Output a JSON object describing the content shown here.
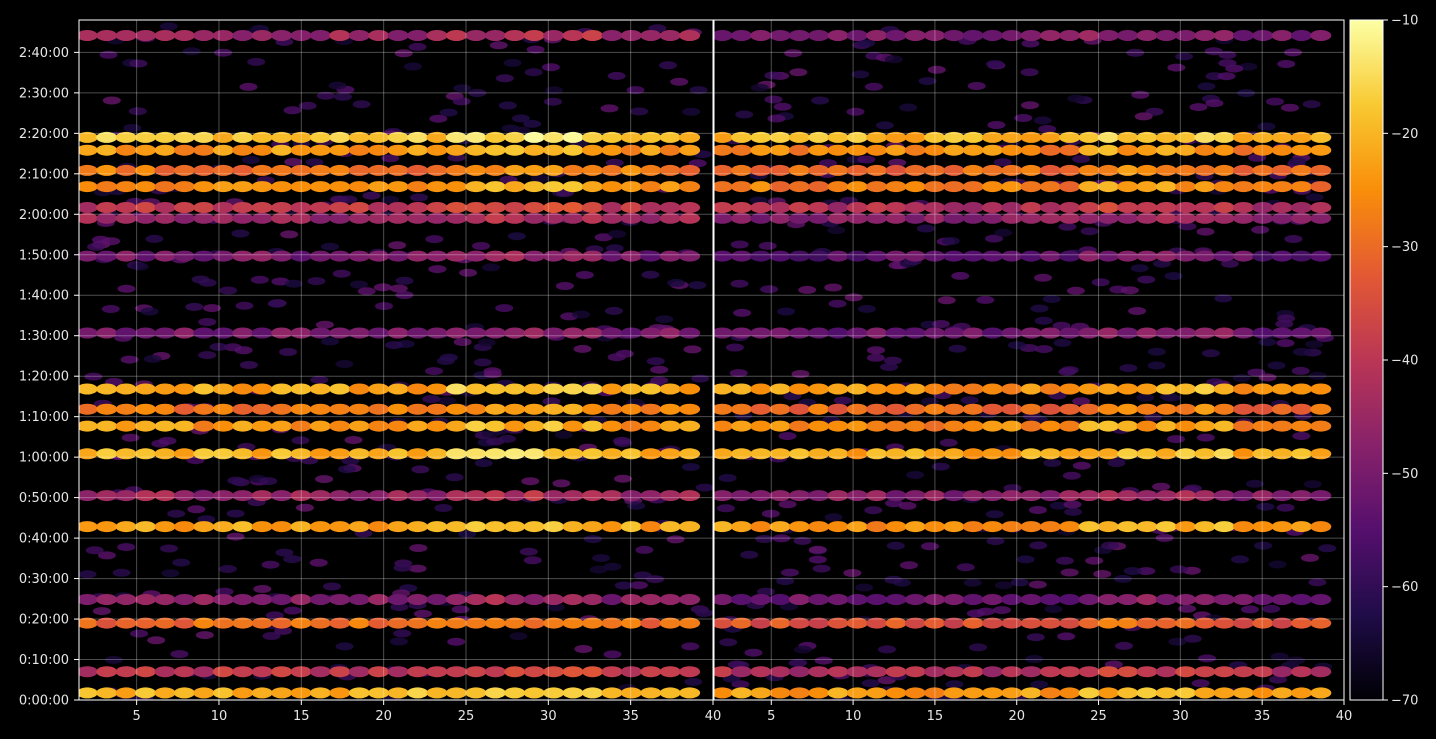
{
  "chart_data": [
    {
      "type": "heatmap",
      "title": "",
      "xlabel": "",
      "ylabel": "",
      "x_range": [
        1.5,
        40
      ],
      "y_range_seconds": [
        0,
        10080
      ],
      "x_ticks": [
        "5",
        "10",
        "15",
        "20",
        "25",
        "30",
        "35",
        "40"
      ],
      "y_ticks": [
        "0:00:00",
        "0:10:00",
        "0:20:00",
        "0:30:00",
        "0:40:00",
        "0:50:00",
        "1:00:00",
        "1:10:00",
        "1:20:00",
        "1:30:00",
        "1:40:00",
        "1:50:00",
        "2:00:00",
        "2:10:00",
        "2:20:00",
        "2:30:00",
        "2:40:00"
      ],
      "grid": true,
      "bands": [
        {
          "time": "0:01:45",
          "level": -20
        },
        {
          "time": "0:07:00",
          "level": -40
        },
        {
          "time": "0:19:00",
          "level": -30
        },
        {
          "time": "0:24:50",
          "level": -48
        },
        {
          "time": "0:42:50",
          "level": -22
        },
        {
          "time": "0:50:30",
          "level": -45
        },
        {
          "time": "1:00:50",
          "level": -20
        },
        {
          "time": "1:07:40",
          "level": -24
        },
        {
          "time": "1:11:50",
          "level": -28
        },
        {
          "time": "1:16:50",
          "level": -22
        },
        {
          "time": "1:30:40",
          "level": -50
        },
        {
          "time": "1:49:40",
          "level": -50
        },
        {
          "time": "1:59:00",
          "level": -45
        },
        {
          "time": "2:01:40",
          "level": -40
        },
        {
          "time": "2:06:50",
          "level": -25
        },
        {
          "time": "2:10:50",
          "level": -28
        },
        {
          "time": "2:15:50",
          "level": -24
        },
        {
          "time": "2:19:00",
          "level": -18
        },
        {
          "time": "2:44:10",
          "level": -45
        }
      ]
    },
    {
      "type": "heatmap",
      "title": "",
      "xlabel": "",
      "ylabel": "",
      "x_range": [
        1.5,
        40
      ],
      "y_range_seconds": [
        0,
        10080
      ],
      "x_ticks": [
        "5",
        "10",
        "15",
        "20",
        "25",
        "30",
        "35",
        "40"
      ],
      "grid": true,
      "bands": [
        {
          "time": "0:01:45",
          "level": -24
        },
        {
          "time": "0:07:00",
          "level": -42
        },
        {
          "time": "0:19:00",
          "level": -34
        },
        {
          "time": "0:24:50",
          "level": -52
        },
        {
          "time": "0:42:50",
          "level": -24
        },
        {
          "time": "0:50:30",
          "level": -48
        },
        {
          "time": "1:00:50",
          "level": -22
        },
        {
          "time": "1:07:40",
          "level": -26
        },
        {
          "time": "1:11:50",
          "level": -30
        },
        {
          "time": "1:16:50",
          "level": -24
        },
        {
          "time": "1:30:40",
          "level": -52
        },
        {
          "time": "1:49:40",
          "level": -54
        },
        {
          "time": "1:59:00",
          "level": -48
        },
        {
          "time": "2:01:40",
          "level": -42
        },
        {
          "time": "2:06:50",
          "level": -27
        },
        {
          "time": "2:10:50",
          "level": -30
        },
        {
          "time": "2:15:50",
          "level": -26
        },
        {
          "time": "2:19:00",
          "level": -20
        },
        {
          "time": "2:44:10",
          "level": -50
        }
      ]
    }
  ],
  "colorbar": {
    "colormap": "inferno",
    "range": [
      -70,
      -10
    ],
    "ticks": [
      "−10",
      "−20",
      "−30",
      "−40",
      "−50",
      "−60",
      "−70"
    ]
  }
}
